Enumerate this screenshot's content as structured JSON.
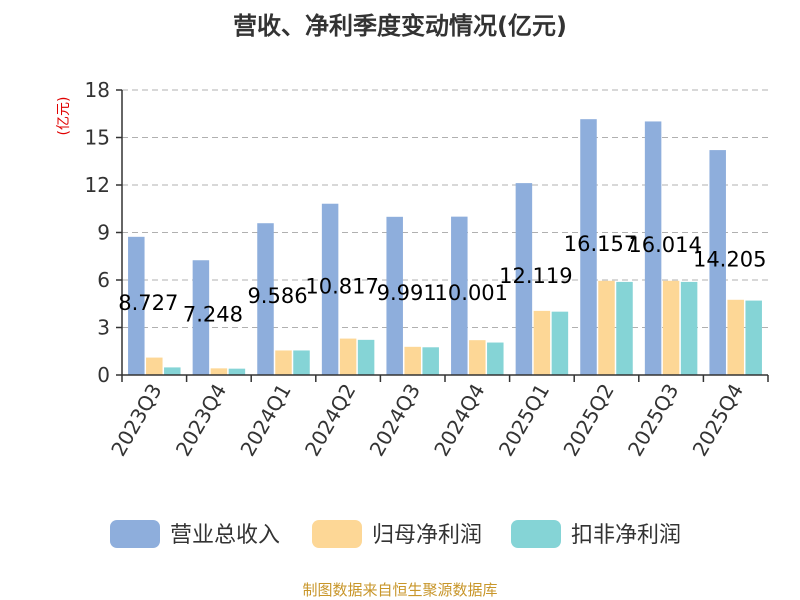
{
  "chart_data": {
    "type": "bar",
    "title": "营收、净利季度变动情况(亿元)",
    "unit_label": "(亿元)",
    "categories": [
      "2023Q3",
      "2023Q4",
      "2024Q1",
      "2024Q2",
      "2024Q3",
      "2024Q4",
      "2025Q1",
      "2025Q2",
      "2025Q3",
      "2025Q4"
    ],
    "series": [
      {
        "name": "营业总收入",
        "color": "#8eaedc",
        "values": [
          8.727,
          7.248,
          9.586,
          10.817,
          9.991,
          10.001,
          12.119,
          16.157,
          16.014,
          14.205
        ],
        "labels": [
          "8.727",
          "7.248",
          "9.586",
          "10.817",
          "9.991",
          "10.001",
          "12.119",
          "16.157",
          "16.014",
          "14.205"
        ]
      },
      {
        "name": "归母净利润",
        "color": "#fdd796",
        "values": [
          1.1,
          0.42,
          1.55,
          2.3,
          1.78,
          2.2,
          4.05,
          5.95,
          5.95,
          4.75
        ]
      },
      {
        "name": "扣非净利润",
        "color": "#85d4d6",
        "values": [
          0.48,
          0.4,
          1.55,
          2.22,
          1.75,
          2.05,
          4.0,
          5.88,
          5.88,
          4.7
        ]
      }
    ],
    "ylim": [
      0,
      18
    ],
    "yticks": [
      0,
      3,
      6,
      9,
      12,
      15,
      18
    ],
    "ytick_labels": [
      "0",
      "3",
      "6",
      "9",
      "12",
      "15",
      "18"
    ],
    "grid": true,
    "legend_position": "bottom"
  },
  "source": "制图数据来自恒生聚源数据库"
}
